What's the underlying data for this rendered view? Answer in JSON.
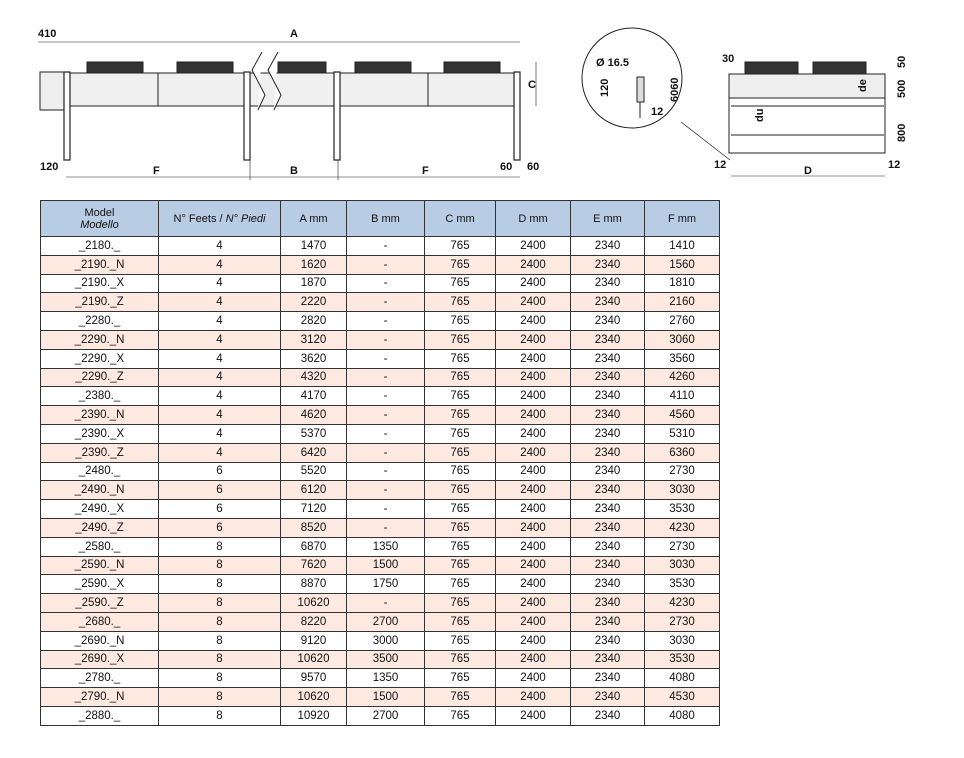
{
  "drawing": {
    "front_labels": {
      "top_left": "410",
      "length": "A",
      "height": "C",
      "bottom_left": "120",
      "span1": "F",
      "span_mid": "B",
      "span2": "F",
      "bottom_right_a": "60",
      "bottom_right_b": "60"
    },
    "detail_labels": {
      "diameter": "Ø 16.5",
      "height": "120",
      "depth": "6060",
      "offset": "12"
    },
    "side_labels": {
      "top_left": "30",
      "top_right": "50",
      "upper": "500",
      "lower": "800",
      "bottom_left": "12",
      "bottom_right": "12",
      "width": "D",
      "inlet": "de",
      "outlet": "du"
    }
  },
  "table": {
    "header_color": "#b8cce4",
    "stripe_color": "#fde9e0",
    "columns": [
      {
        "label": "Model",
        "label_it": "Modello"
      },
      {
        "label": "N° Feets / ",
        "label_it": "N° Piedi"
      },
      {
        "label": "A mm"
      },
      {
        "label": "B mm"
      },
      {
        "label": "C mm"
      },
      {
        "label": "D mm"
      },
      {
        "label": "E mm"
      },
      {
        "label": "F mm"
      }
    ],
    "rows": [
      {
        "shaded": false,
        "cells": [
          "_2180._",
          "4",
          "1470",
          "-",
          "765",
          "2400",
          "2340",
          "1410"
        ]
      },
      {
        "shaded": true,
        "cells": [
          "_2190._N",
          "4",
          "1620",
          "-",
          "765",
          "2400",
          "2340",
          "1560"
        ]
      },
      {
        "shaded": false,
        "cells": [
          "_2190._X",
          "4",
          "1870",
          "-",
          "765",
          "2400",
          "2340",
          "1810"
        ]
      },
      {
        "shaded": true,
        "cells": [
          "_2190._Z",
          "4",
          "2220",
          "-",
          "765",
          "2400",
          "2340",
          "2160"
        ]
      },
      {
        "shaded": false,
        "cells": [
          "_2280._",
          "4",
          "2820",
          "-",
          "765",
          "2400",
          "2340",
          "2760"
        ]
      },
      {
        "shaded": true,
        "cells": [
          "_2290._N",
          "4",
          "3120",
          "-",
          "765",
          "2400",
          "2340",
          "3060"
        ]
      },
      {
        "shaded": false,
        "cells": [
          "_2290._X",
          "4",
          "3620",
          "-",
          "765",
          "2400",
          "2340",
          "3560"
        ]
      },
      {
        "shaded": true,
        "cells": [
          "_2290._Z",
          "4",
          "4320",
          "-",
          "765",
          "2400",
          "2340",
          "4260"
        ]
      },
      {
        "shaded": false,
        "cells": [
          "_2380._",
          "4",
          "4170",
          "-",
          "765",
          "2400",
          "2340",
          "4110"
        ]
      },
      {
        "shaded": true,
        "cells": [
          "_2390._N",
          "4",
          "4620",
          "-",
          "765",
          "2400",
          "2340",
          "4560"
        ]
      },
      {
        "shaded": false,
        "cells": [
          "_2390._X",
          "4",
          "5370",
          "-",
          "765",
          "2400",
          "2340",
          "5310"
        ]
      },
      {
        "shaded": true,
        "cells": [
          "_2390._Z",
          "4",
          "6420",
          "-",
          "765",
          "2400",
          "2340",
          "6360"
        ]
      },
      {
        "shaded": false,
        "cells": [
          "_2480._",
          "6",
          "5520",
          "-",
          "765",
          "2400",
          "2340",
          "2730"
        ]
      },
      {
        "shaded": true,
        "cells": [
          "_2490._N",
          "6",
          "6120",
          "-",
          "765",
          "2400",
          "2340",
          "3030"
        ]
      },
      {
        "shaded": false,
        "cells": [
          "_2490._X",
          "6",
          "7120",
          "-",
          "765",
          "2400",
          "2340",
          "3530"
        ]
      },
      {
        "shaded": true,
        "cells": [
          "_2490._Z",
          "6",
          "8520",
          "-",
          "765",
          "2400",
          "2340",
          "4230"
        ]
      },
      {
        "shaded": false,
        "cells": [
          "_2580._",
          "8",
          "6870",
          "1350",
          "765",
          "2400",
          "2340",
          "2730"
        ]
      },
      {
        "shaded": true,
        "cells": [
          "_2590._N",
          "8",
          "7620",
          "1500",
          "765",
          "2400",
          "2340",
          "3030"
        ]
      },
      {
        "shaded": false,
        "cells": [
          "_2590._X",
          "8",
          "8870",
          "1750",
          "765",
          "2400",
          "2340",
          "3530"
        ]
      },
      {
        "shaded": true,
        "cells": [
          "_2590._Z",
          "8",
          "10620",
          "-",
          "765",
          "2400",
          "2340",
          "4230"
        ]
      },
      {
        "shaded": true,
        "cells": [
          "_2680._",
          "8",
          "8220",
          "2700",
          "765",
          "2400",
          "2340",
          "2730"
        ]
      },
      {
        "shaded": false,
        "cells": [
          "_2690._N",
          "8",
          "9120",
          "3000",
          "765",
          "2400",
          "2340",
          "3030"
        ]
      },
      {
        "shaded": true,
        "cells": [
          "_2690._X",
          "8",
          "10620",
          "3500",
          "765",
          "2400",
          "2340",
          "3530"
        ]
      },
      {
        "shaded": false,
        "cells": [
          "_2780._",
          "8",
          "9570",
          "1350",
          "765",
          "2400",
          "2340",
          "4080"
        ]
      },
      {
        "shaded": true,
        "cells": [
          "_2790._N",
          "8",
          "10620",
          "1500",
          "765",
          "2400",
          "2340",
          "4530"
        ]
      },
      {
        "shaded": false,
        "cells": [
          "_2880._",
          "8",
          "10920",
          "2700",
          "765",
          "2400",
          "2340",
          "4080"
        ]
      }
    ]
  }
}
